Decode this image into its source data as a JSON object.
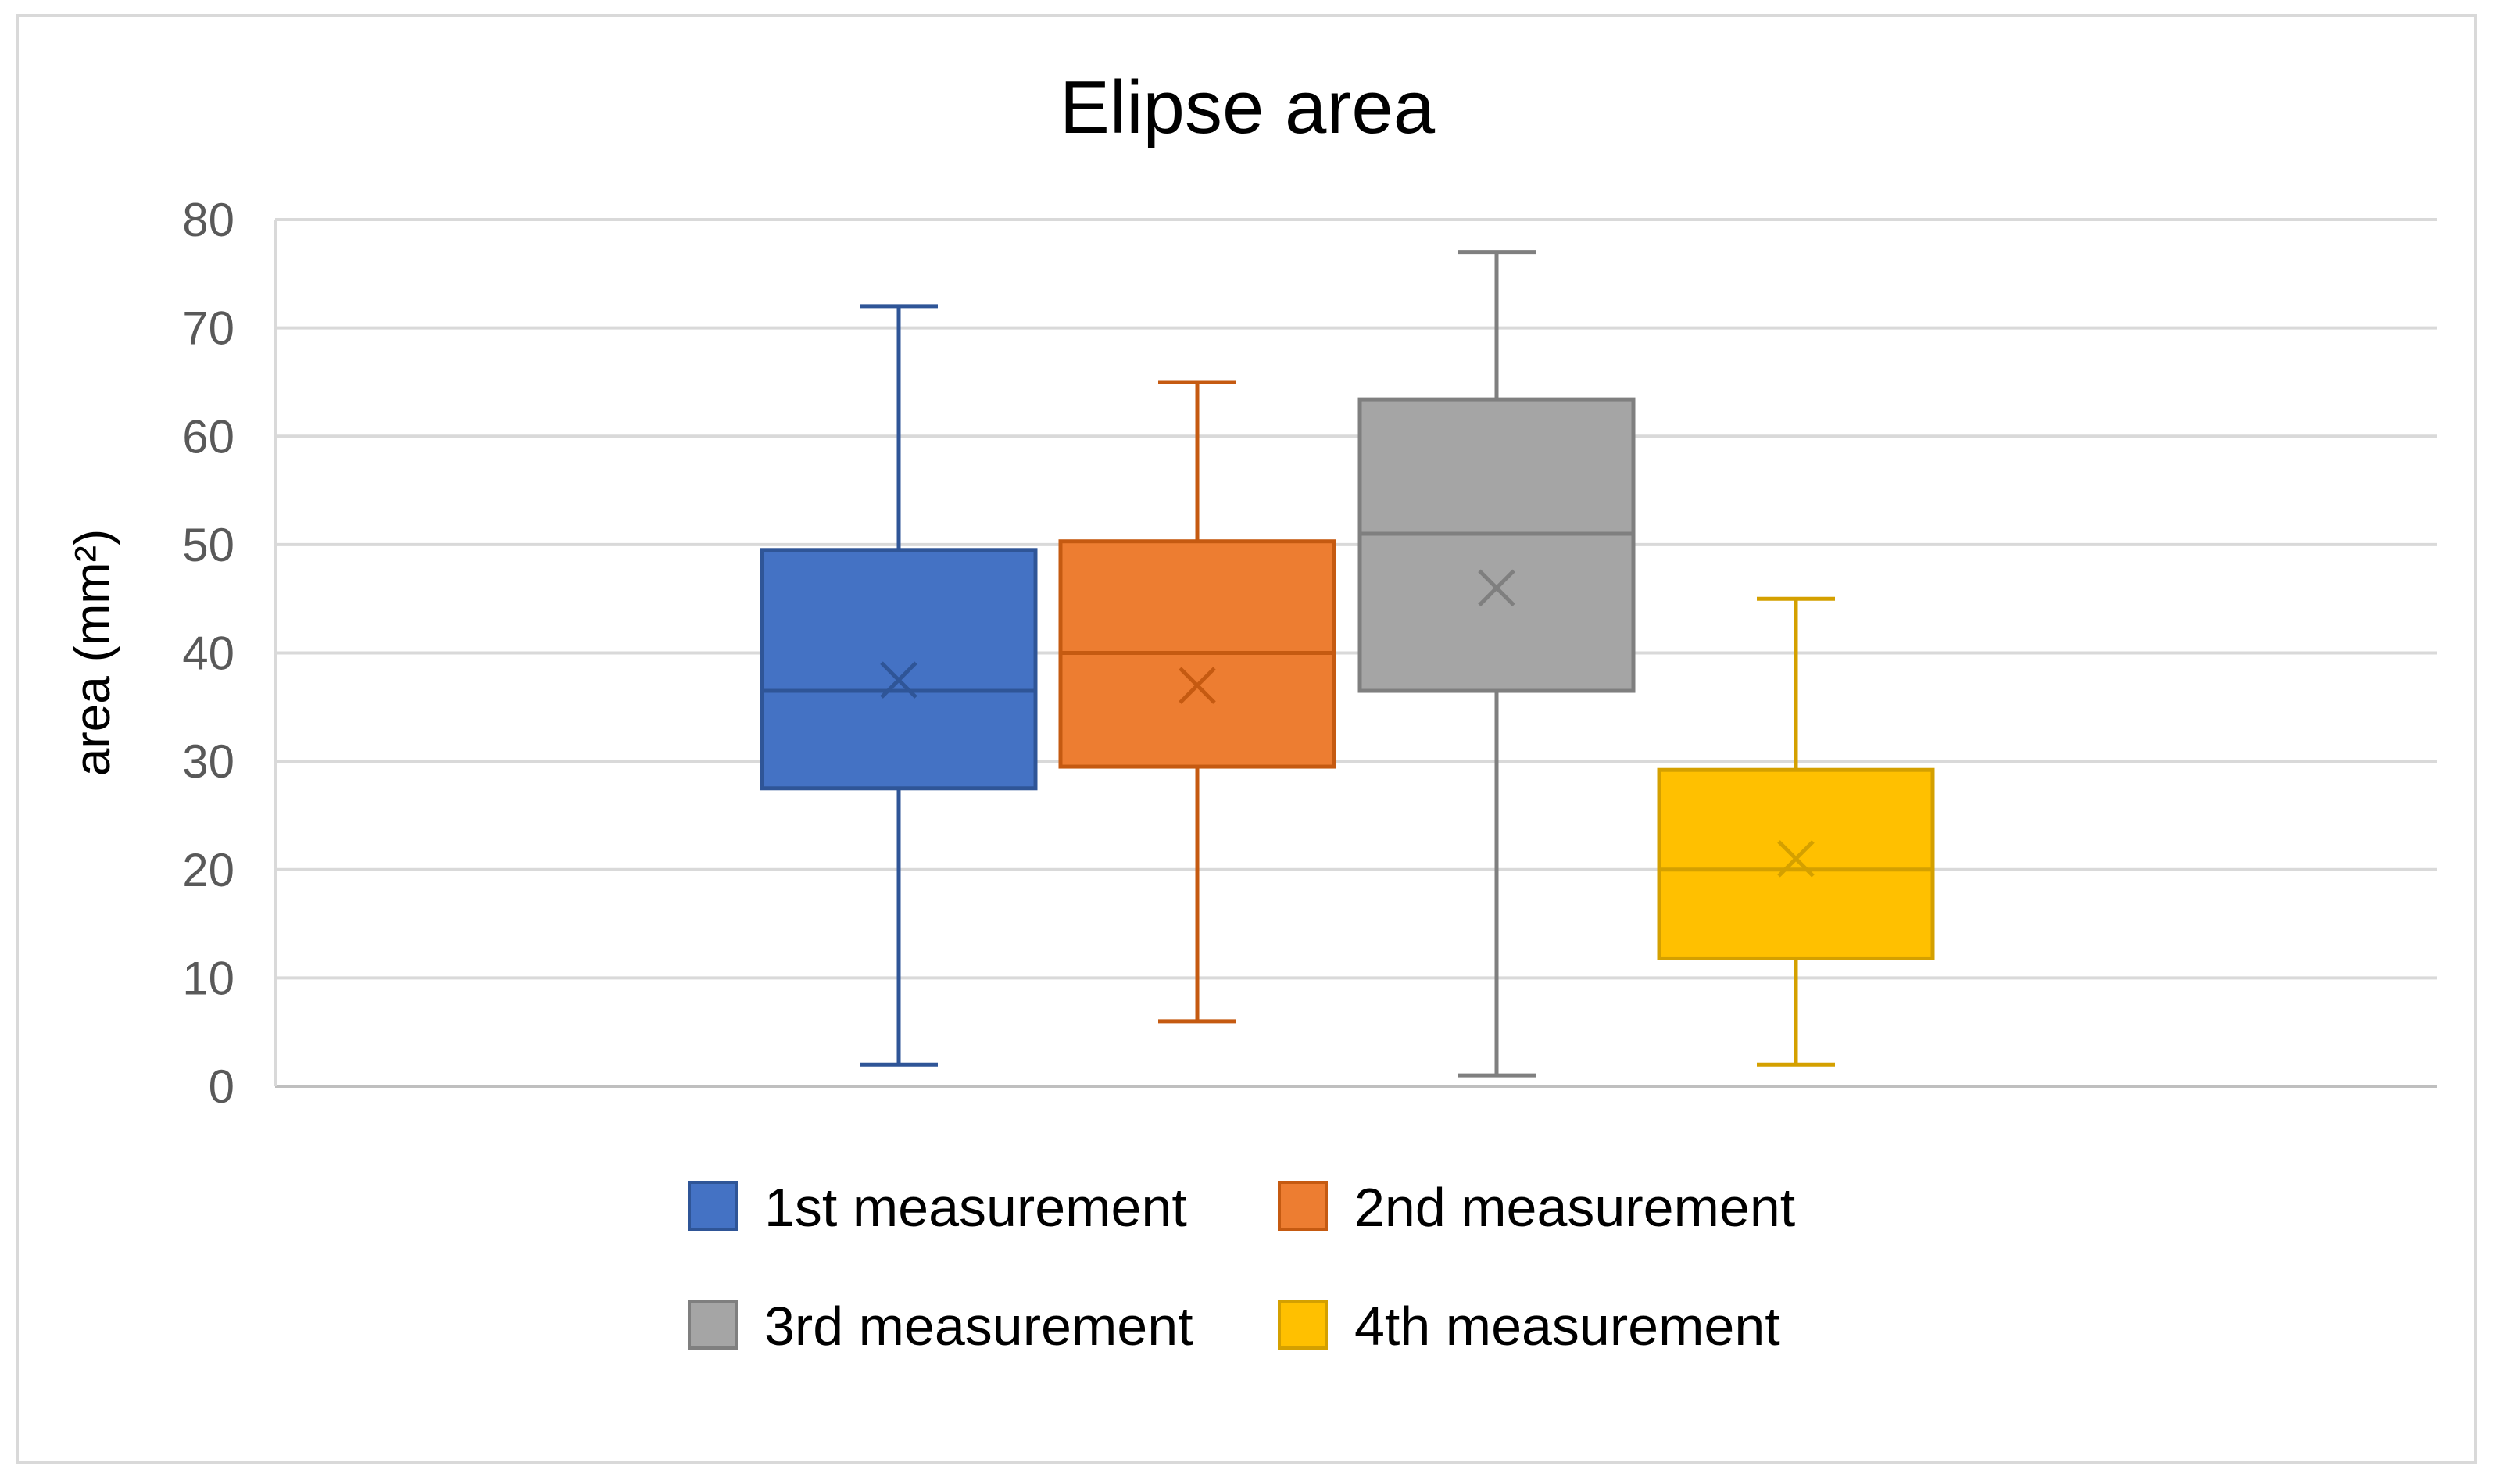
{
  "colors": {
    "background": "#ffffff",
    "frame": "#d9d9d9",
    "gridline": "#d9d9d9",
    "axis_line": "#bfbfbf",
    "tick_text": "#595959",
    "text": "#000000"
  },
  "chart_data": {
    "type": "box",
    "title": "Elipse area",
    "xlabel": "",
    "ylabel": "area (mm²)",
    "ylim": [
      0,
      80
    ],
    "yticks": [
      0,
      10,
      20,
      30,
      40,
      50,
      60,
      70,
      80
    ],
    "grid": true,
    "legend_position": "bottom",
    "series": [
      {
        "name": "1st measurement",
        "color": "#4472c4",
        "stroke": "#2f5597",
        "min": 2,
        "q1": 27.5,
        "median": 36.5,
        "mean": 37.5,
        "q3": 49.5,
        "max": 72
      },
      {
        "name": "2nd measurement",
        "color": "#ed7d31",
        "stroke": "#c55a11",
        "min": 6,
        "q1": 29.5,
        "median": 40,
        "mean": 37,
        "q3": 50.3,
        "max": 65
      },
      {
        "name": "3rd measurement",
        "color": "#a5a5a5",
        "stroke": "#7f7f7f",
        "min": 1,
        "q1": 36.5,
        "median": 51,
        "mean": 46,
        "q3": 63.4,
        "max": 77
      },
      {
        "name": "4th measurement",
        "color": "#ffc000",
        "stroke": "#d4a000",
        "min": 2,
        "q1": 11.8,
        "median": 20,
        "mean": 21,
        "q3": 29.2,
        "max": 45
      }
    ]
  }
}
